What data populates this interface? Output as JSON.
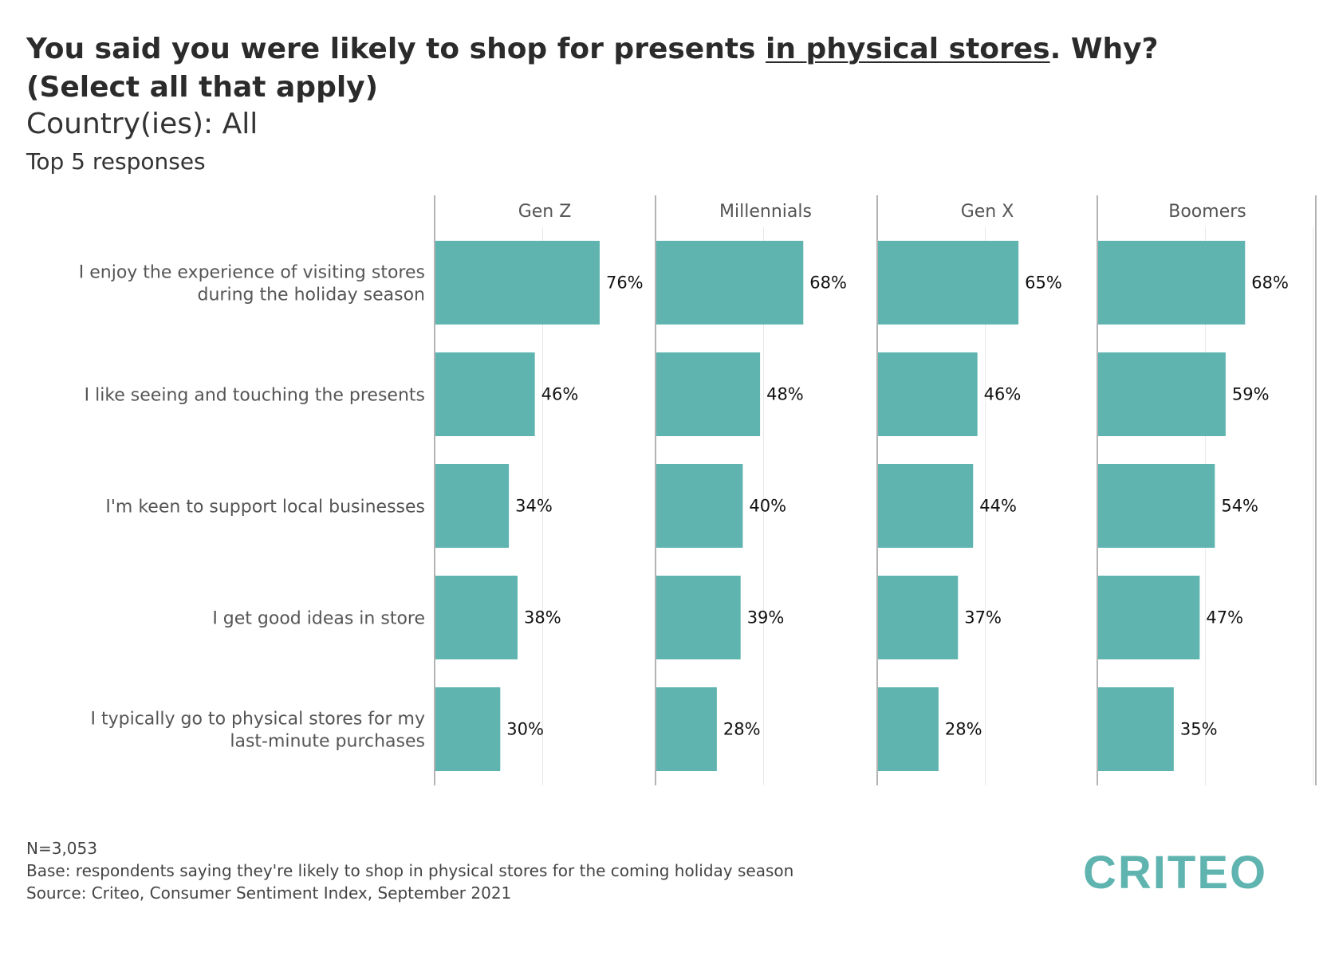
{
  "title": {
    "part1": "You said you were likely to shop for presents ",
    "underlined": "in physical stores",
    "part2": ". Why?",
    "line2": "(Select all that apply)"
  },
  "subtitle": "Country(ies): All",
  "subsubtitle": "Top 5 responses",
  "footer": {
    "n": "N=3,053",
    "base": "Base: respondents saying they're likely to shop in physical stores for the coming holiday season",
    "source": "Source: Criteo, Consumer Sentiment Index, September 2021"
  },
  "logo_text": "CRITEO",
  "colors": {
    "bar": "#5fb4b0",
    "logo": "#5fb4b0",
    "text": "#333333",
    "grid": "#e8e8e8",
    "axis": "#9a9a9a"
  },
  "chart_data": {
    "type": "bar",
    "orientation": "horizontal",
    "categories": [
      [
        "I enjoy the experience of visiting stores",
        "during the holiday season"
      ],
      [
        "I like seeing and touching the presents"
      ],
      [
        "I'm keen to support local businesses"
      ],
      [
        "I get good ideas in store"
      ],
      [
        "I typically go to physical stores for my",
        "last-minute purchases"
      ]
    ],
    "panels": [
      {
        "name": "Gen Z",
        "values": [
          76,
          46,
          34,
          38,
          30
        ],
        "labels": [
          "76%",
          "46%",
          "34%",
          "38%",
          "30%"
        ]
      },
      {
        "name": "Millennials",
        "values": [
          68,
          48,
          40,
          39,
          28
        ],
        "labels": [
          "68%",
          "48%",
          "40%",
          "39%",
          "28%"
        ]
      },
      {
        "name": "Gen X",
        "values": [
          65,
          46,
          44,
          37,
          28
        ],
        "labels": [
          "65%",
          "46%",
          "44%",
          "37%",
          "28%"
        ]
      },
      {
        "name": "Boomers",
        "values": [
          68,
          59,
          54,
          47,
          35
        ],
        "labels": [
          "68%",
          "59%",
          "54%",
          "47%",
          "35%"
        ]
      }
    ],
    "xlim": [
      0,
      100
    ],
    "grid": true,
    "legend": "none"
  }
}
